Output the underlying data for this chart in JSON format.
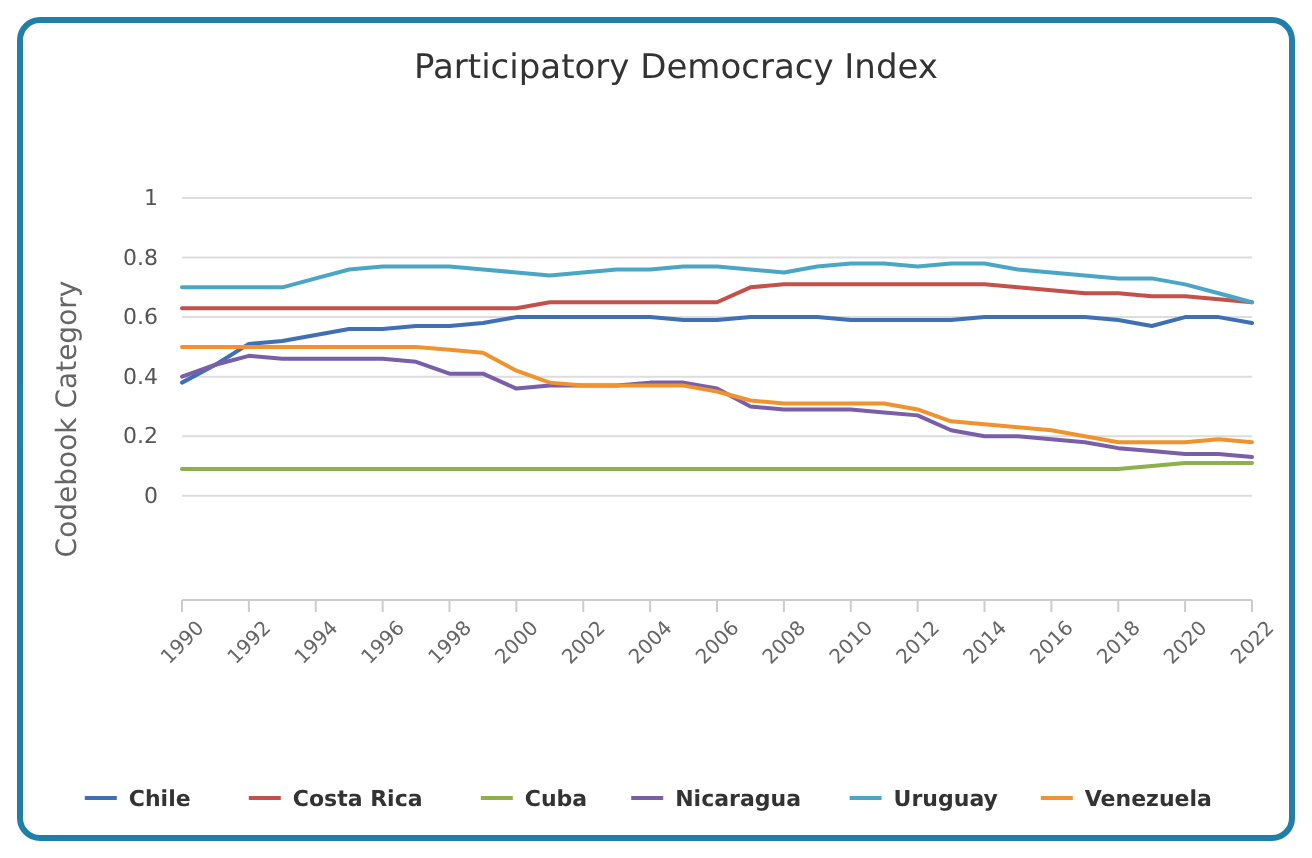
{
  "chart_data": {
    "type": "line",
    "title": "Participatory Democracy Index",
    "ylabel": "Codebook Category",
    "x": [
      1990,
      1991,
      1992,
      1993,
      1994,
      1995,
      1996,
      1997,
      1998,
      1999,
      2000,
      2001,
      2002,
      2003,
      2004,
      2005,
      2006,
      2007,
      2008,
      2009,
      2010,
      2011,
      2012,
      2013,
      2014,
      2015,
      2016,
      2017,
      2018,
      2019,
      2020,
      2021,
      2022
    ],
    "xlim": [
      1990,
      2022
    ],
    "xticks": [
      1990,
      1992,
      1994,
      1996,
      1998,
      2000,
      2002,
      2004,
      2006,
      2008,
      2010,
      2012,
      2014,
      2016,
      2018,
      2020,
      2022
    ],
    "ylim": [
      -0.35,
      1
    ],
    "yticks": [
      0,
      0.2,
      0.4,
      0.6,
      0.8,
      1
    ],
    "grid": "y",
    "legend": "bottom",
    "marker": "none",
    "series": [
      {
        "name": "Chile",
        "color": "#3f6fb5",
        "values": [
          0.38,
          0.44,
          0.51,
          0.52,
          0.54,
          0.56,
          0.56,
          0.57,
          0.57,
          0.58,
          0.6,
          0.6,
          0.6,
          0.6,
          0.6,
          0.59,
          0.59,
          0.6,
          0.6,
          0.6,
          0.59,
          0.59,
          0.59,
          0.59,
          0.6,
          0.6,
          0.6,
          0.6,
          0.59,
          0.57,
          0.6,
          0.6,
          0.58
        ]
      },
      {
        "name": "Costa Rica",
        "color": "#c4504a",
        "values": [
          0.63,
          0.63,
          0.63,
          0.63,
          0.63,
          0.63,
          0.63,
          0.63,
          0.63,
          0.63,
          0.63,
          0.65,
          0.65,
          0.65,
          0.65,
          0.65,
          0.65,
          0.7,
          0.71,
          0.71,
          0.71,
          0.71,
          0.71,
          0.71,
          0.71,
          0.7,
          0.69,
          0.68,
          0.68,
          0.67,
          0.67,
          0.66,
          0.65
        ]
      },
      {
        "name": "Cuba",
        "color": "#8db04a",
        "values": [
          0.09,
          0.09,
          0.09,
          0.09,
          0.09,
          0.09,
          0.09,
          0.09,
          0.09,
          0.09,
          0.09,
          0.09,
          0.09,
          0.09,
          0.09,
          0.09,
          0.09,
          0.09,
          0.09,
          0.09,
          0.09,
          0.09,
          0.09,
          0.09,
          0.09,
          0.09,
          0.09,
          0.09,
          0.09,
          0.1,
          0.11,
          0.11,
          0.11
        ]
      },
      {
        "name": "Nicaragua",
        "color": "#7a5ea8",
        "values": [
          0.4,
          0.44,
          0.47,
          0.46,
          0.46,
          0.46,
          0.46,
          0.45,
          0.41,
          0.41,
          0.36,
          0.37,
          0.37,
          0.37,
          0.38,
          0.38,
          0.36,
          0.3,
          0.29,
          0.29,
          0.29,
          0.28,
          0.27,
          0.22,
          0.2,
          0.2,
          0.19,
          0.18,
          0.16,
          0.15,
          0.14,
          0.14,
          0.13
        ]
      },
      {
        "name": "Uruguay",
        "color": "#4ba6c6",
        "values": [
          0.7,
          0.7,
          0.7,
          0.7,
          0.73,
          0.76,
          0.77,
          0.77,
          0.77,
          0.76,
          0.75,
          0.74,
          0.75,
          0.76,
          0.76,
          0.77,
          0.77,
          0.76,
          0.75,
          0.77,
          0.78,
          0.78,
          0.77,
          0.78,
          0.78,
          0.76,
          0.75,
          0.74,
          0.73,
          0.73,
          0.71,
          0.68,
          0.65
        ]
      },
      {
        "name": "Venezuela",
        "color": "#f0922e",
        "values": [
          0.5,
          0.5,
          0.5,
          0.5,
          0.5,
          0.5,
          0.5,
          0.5,
          0.49,
          0.48,
          0.42,
          0.38,
          0.37,
          0.37,
          0.37,
          0.37,
          0.35,
          0.32,
          0.31,
          0.31,
          0.31,
          0.31,
          0.29,
          0.25,
          0.24,
          0.23,
          0.22,
          0.2,
          0.18,
          0.18,
          0.18,
          0.19,
          0.18
        ]
      }
    ]
  }
}
